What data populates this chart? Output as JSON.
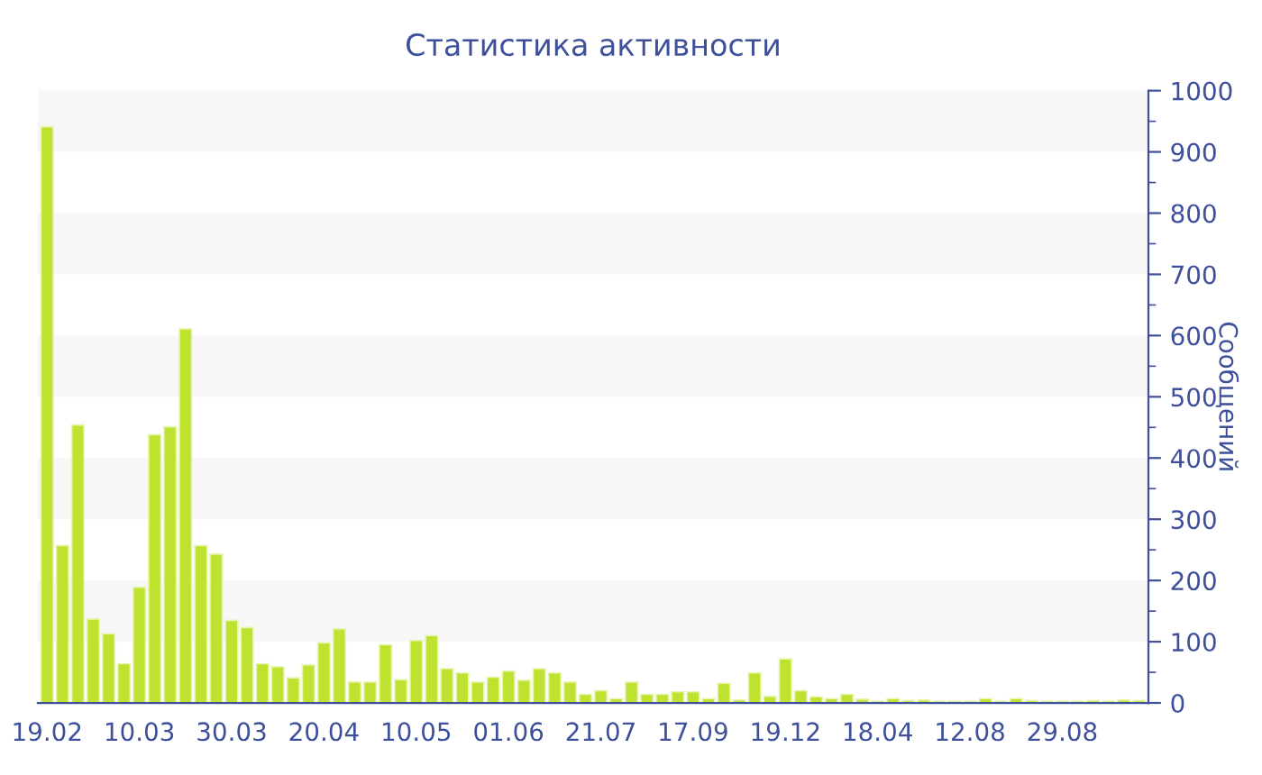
{
  "chart_data": {
    "type": "bar",
    "title": "Статистика активности",
    "ylabel": "Сообщений",
    "categories": [
      "19.02",
      null,
      null,
      null,
      null,
      null,
      "10.03",
      null,
      null,
      null,
      null,
      null,
      "30.03",
      null,
      null,
      null,
      null,
      null,
      "20.04",
      null,
      null,
      null,
      null,
      null,
      "10.05",
      null,
      null,
      null,
      null,
      null,
      "01.06",
      null,
      null,
      null,
      null,
      null,
      "21.07",
      null,
      null,
      null,
      null,
      null,
      "17.09",
      null,
      null,
      null,
      null,
      null,
      "19.12",
      null,
      null,
      null,
      null,
      null,
      "18.04",
      null,
      null,
      null,
      null,
      null,
      "12.08",
      null,
      null,
      null,
      null,
      null,
      "29.08",
      null,
      null,
      null,
      null,
      null
    ],
    "values": [
      941,
      257,
      454,
      137,
      113,
      64,
      189,
      438,
      451,
      611,
      257,
      243,
      135,
      123,
      64,
      59,
      41,
      62,
      98,
      121,
      34,
      34,
      95,
      38,
      102,
      110,
      56,
      49,
      34,
      42,
      52,
      37,
      56,
      49,
      34,
      14,
      20,
      7,
      34,
      14,
      14,
      18,
      18,
      7,
      32,
      5,
      49,
      11,
      72,
      20,
      10,
      7,
      14,
      6,
      3,
      7,
      4,
      5,
      3,
      3,
      3,
      7,
      3,
      7,
      4,
      3,
      3,
      3,
      4,
      3,
      5,
      4
    ],
    "color": "#bde22f",
    "ylim": [
      0,
      1000
    ],
    "yticks": [
      0,
      100,
      200,
      300,
      400,
      500,
      600,
      700,
      800,
      900,
      1000
    ],
    "bands": [
      {
        "axis": "y",
        "from": 100,
        "to": 200,
        "color": "#f7f7f7"
      },
      {
        "axis": "y",
        "from": 300,
        "to": 400,
        "color": "#f7f7f7"
      },
      {
        "axis": "y",
        "from": 500,
        "to": 600,
        "color": "#f7f7f7"
      },
      {
        "axis": "y",
        "from": 700,
        "to": 800,
        "color": "#f7f7f7"
      },
      {
        "axis": "y",
        "from": 900,
        "to": 1000,
        "color": "#f7f7f7"
      }
    ],
    "grid": false,
    "legend": false
  }
}
